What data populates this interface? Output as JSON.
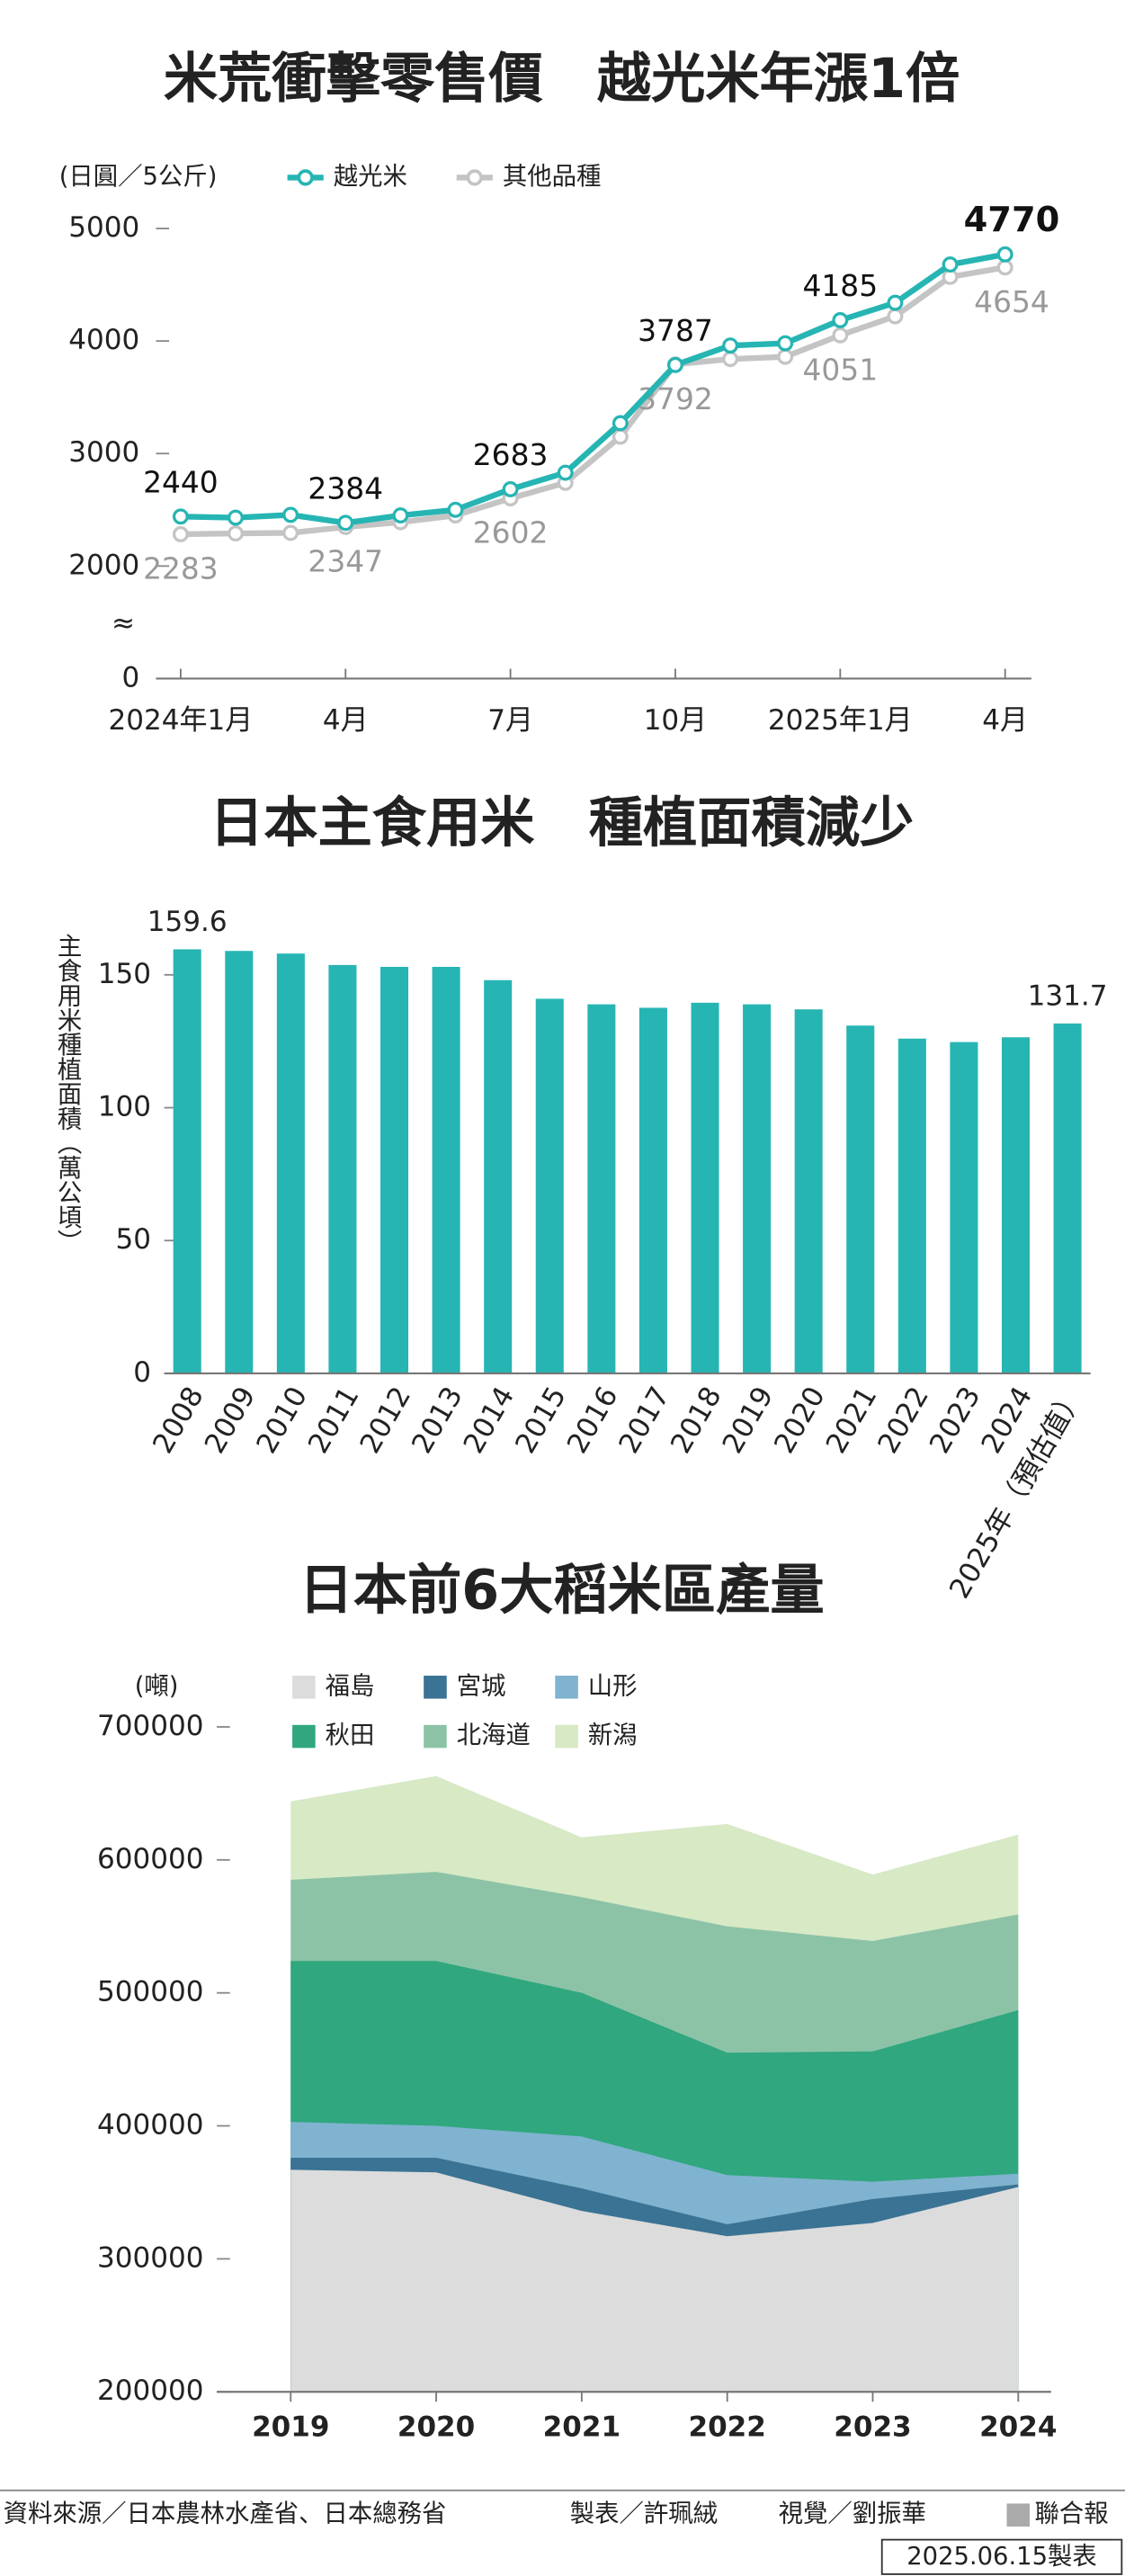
{
  "chart_data": [
    {
      "type": "line",
      "title": "米荒衝擊零售價　越光米年漲1倍",
      "y_label": "(日圓／5公斤)",
      "categories": [
        "2024年1月",
        null,
        null,
        "4月",
        null,
        null,
        "7月",
        null,
        null,
        "10月",
        null,
        null,
        "2025年1月",
        null,
        null,
        "4月"
      ],
      "series": [
        {
          "name": "越光米",
          "color": "#26b5b3",
          "values": [
            2440,
            2430,
            2455,
            2384,
            2450,
            2500,
            2683,
            2830,
            3270,
            3787,
            3960,
            3980,
            4185,
            4340,
            4680,
            4770
          ]
        },
        {
          "name": "其他品種",
          "color": "#c4c4c4",
          "values": [
            2283,
            2290,
            2295,
            2347,
            2390,
            2450,
            2602,
            2740,
            3150,
            3792,
            3840,
            3860,
            4051,
            4220,
            4570,
            4654
          ]
        }
      ],
      "labeled_points": [
        0,
        3,
        6,
        9,
        12,
        15
      ],
      "ylim": [
        1000,
        5000
      ],
      "yticks": [
        2000,
        3000,
        4000,
        5000
      ],
      "axis_floor": 0,
      "legend": "top-left"
    },
    {
      "type": "bar",
      "title": "日本主食用米　種植面積減少",
      "y_label": "主食用米種植面積（萬公頃）",
      "categories": [
        "2008",
        "2009",
        "2010",
        "2011",
        "2012",
        "2013",
        "2014",
        "2015",
        "2016",
        "2017",
        "2018",
        "2019",
        "2020",
        "2021",
        "2022",
        "2023",
        "2024",
        "2025年（預估值）"
      ],
      "values": [
        159.6,
        159,
        158,
        153.7,
        153,
        153,
        148,
        141,
        138.9,
        137.6,
        139.5,
        138.9,
        137,
        130.9,
        126,
        124.7,
        126.5,
        131.7
      ],
      "labeled_points": [
        0,
        17
      ],
      "color": "#26b5b3",
      "ylim": [
        0,
        170
      ],
      "yticks": [
        0,
        50,
        100,
        150
      ]
    },
    {
      "type": "area",
      "title": "日本前6大稻米區產量",
      "y_label": "(噸)",
      "categories": [
        "2019",
        "2020",
        "2021",
        "2022",
        "2023",
        "2024"
      ],
      "series": [
        {
          "name": "福島",
          "color": "#dcdcdc",
          "values": [
            367000,
            365000,
            336000,
            317000,
            327000,
            354000
          ]
        },
        {
          "name": "宮城",
          "color": "#3a7394",
          "values": [
            376000,
            376000,
            353000,
            326000,
            345000,
            356000
          ]
        },
        {
          "name": "山形",
          "color": "#80b3cf",
          "values": [
            403000,
            400000,
            392000,
            363000,
            358000,
            364000
          ]
        },
        {
          "name": "秋田",
          "color": "#30a77f",
          "values": [
            524000,
            524000,
            500000,
            455000,
            456000,
            487000
          ]
        },
        {
          "name": "北海道",
          "color": "#8cc3a7",
          "values": [
            585000,
            591000,
            572000,
            550000,
            539000,
            559000
          ]
        },
        {
          "name": "新潟",
          "color": "#d7e9c5",
          "values": [
            644000,
            663000,
            617000,
            627000,
            589000,
            619000
          ]
        }
      ],
      "ylim": [
        200000,
        720000
      ],
      "yticks": [
        200000,
        300000,
        400000,
        500000,
        600000,
        700000
      ],
      "legend": "top-left"
    }
  ],
  "footer": {
    "source": "資料來源／日本農林水產省、日本總務省",
    "made_by": "製表／許珮絨",
    "visual": "視覺／劉振華",
    "publisher": "聯合報",
    "date": "2025.06.15製表"
  }
}
